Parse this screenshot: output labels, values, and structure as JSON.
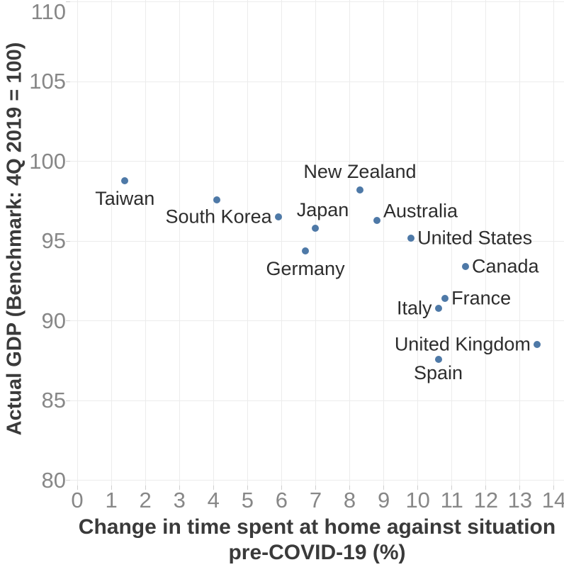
{
  "chart_data": {
    "type": "scatter",
    "title": "",
    "xlabel_line1": "Change in time spent at home against situation",
    "xlabel_line2": "pre-COVID-19 (%)",
    "ylabel": "Actual GDP (Benchmark: 4Q 2019 = 100)",
    "x_ticks": [
      0,
      1,
      2,
      3,
      4,
      5,
      6,
      7,
      8,
      9,
      10,
      11,
      12,
      13,
      14
    ],
    "y_ticks": [
      80,
      85,
      90,
      95,
      100,
      105,
      110
    ],
    "xlim": [
      0,
      14
    ],
    "ylim": [
      80,
      110
    ],
    "grid": true,
    "legend_position": "none",
    "colors": {
      "point": "#4e79a7",
      "grid": "#ececec",
      "tick_label": "#878787",
      "point_label": "#2d2d2d",
      "axis_title": "#3a3a3a",
      "tick_mark": "#cfcfcf",
      "background": "#ffffff"
    },
    "points": [
      {
        "label": "Taiwan",
        "x": 1.4,
        "y": 98.8,
        "placement": "below"
      },
      {
        "label": "",
        "x": 4.1,
        "y": 97.6,
        "placement": "none"
      },
      {
        "label": "South Korea",
        "x": 5.9,
        "y": 96.5,
        "placement": "left"
      },
      {
        "label": "Japan",
        "x": 7.0,
        "y": 95.8,
        "placement": "above",
        "dx": 10
      },
      {
        "label": "Germany",
        "x": 6.7,
        "y": 94.4,
        "placement": "below"
      },
      {
        "label": "New Zealand",
        "x": 8.3,
        "y": 98.2,
        "placement": "above"
      },
      {
        "label": "Australia",
        "x": 8.8,
        "y": 96.3,
        "placement": "right",
        "dy": -13
      },
      {
        "label": "United States",
        "x": 9.8,
        "y": 95.2,
        "placement": "right"
      },
      {
        "label": "Canada",
        "x": 11.4,
        "y": 93.4,
        "placement": "right"
      },
      {
        "label": "France",
        "x": 10.8,
        "y": 91.4,
        "placement": "right"
      },
      {
        "label": "Italy",
        "x": 10.6,
        "y": 90.8,
        "placement": "left"
      },
      {
        "label": "United Kingdom",
        "x": 13.5,
        "y": 88.5,
        "placement": "left"
      },
      {
        "label": "Spain",
        "x": 10.6,
        "y": 87.6,
        "placement": "below",
        "dy": -6
      }
    ]
  }
}
